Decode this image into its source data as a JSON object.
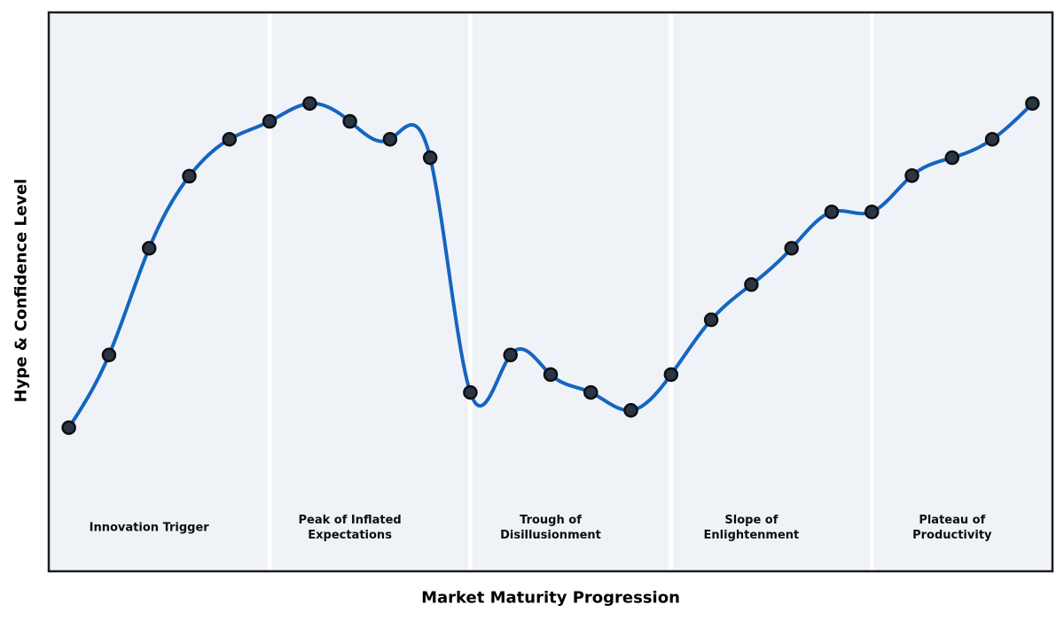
{
  "chart_data": {
    "type": "line",
    "title": "",
    "xlabel": "Market Maturity Progression",
    "ylabel": "Hype & Confidence Level",
    "grid": false,
    "legend": "none",
    "xlim": [
      -0.5,
      24.5
    ],
    "ylim": [
      0,
      100
    ],
    "x": [
      0,
      1,
      2,
      3,
      4,
      5,
      6,
      7,
      8,
      9,
      10,
      11,
      12,
      13,
      14,
      15,
      16,
      17,
      18,
      19,
      20,
      21,
      22,
      23,
      24
    ],
    "series": [
      {
        "name": "Hype & Confidence Level",
        "values": [
          25.7,
          38.7,
          57.8,
          70.7,
          77.3,
          80.5,
          83.7,
          80.5,
          77.3,
          74.0,
          32.0,
          38.7,
          35.2,
          32.0,
          28.8,
          35.2,
          45.0,
          51.3,
          57.8,
          64.3,
          64.3,
          70.8,
          74.0,
          77.3,
          83.7
        ]
      }
    ],
    "curve_style": "smooth-cubic-spline",
    "phase_boundaries_x": [
      5,
      10,
      15,
      20
    ],
    "phases": [
      {
        "label": "Innovation Trigger",
        "center_x": 2
      },
      {
        "label": "Peak of Inflated\nExpectations",
        "center_x": 7
      },
      {
        "label": "Trough of\nDisillusionment",
        "center_x": 12
      },
      {
        "label": "Slope of\nEnlightenment",
        "center_x": 17
      },
      {
        "label": "Plateau of\nProductivity",
        "center_x": 22
      }
    ],
    "colors": {
      "line": "#1565c0",
      "marker_fill": "#2b3642",
      "marker_edge": "#0b0f14",
      "plot_background": "#eff3f8",
      "phase_separator": "#ffffff",
      "border": "#1c1c1c",
      "text": "#000000"
    }
  }
}
